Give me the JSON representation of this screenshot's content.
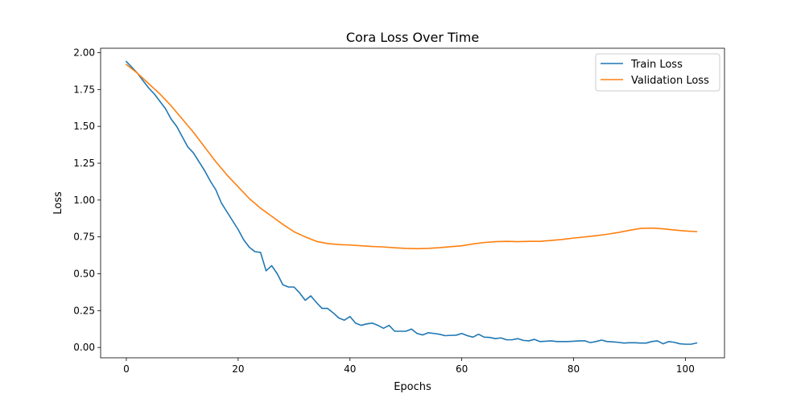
{
  "chart_data": {
    "type": "line",
    "title": "Cora Loss Over Time",
    "xlabel": "Epochs",
    "ylabel": "Loss",
    "xlim": [
      -4.6,
      107
    ],
    "ylim": [
      -0.07,
      2.03
    ],
    "xticks": [
      0,
      20,
      40,
      60,
      80,
      100
    ],
    "yticks": [
      0.0,
      0.25,
      0.5,
      0.75,
      1.0,
      1.25,
      1.5,
      1.75,
      2.0
    ],
    "ytick_labels": [
      "0.00",
      "0.25",
      "0.50",
      "0.75",
      "1.00",
      "1.25",
      "1.50",
      "1.75",
      "2.00"
    ],
    "grid": false,
    "legend_position": "top-right",
    "series": [
      {
        "name": "Train Loss",
        "color": "#1f77b4",
        "points": [
          [
            0,
            1.94
          ],
          [
            1,
            1.9
          ],
          [
            2,
            1.86
          ],
          [
            3,
            1.81
          ],
          [
            4,
            1.76
          ],
          [
            5,
            1.72
          ],
          [
            6,
            1.67
          ],
          [
            7,
            1.62
          ],
          [
            8,
            1.55
          ],
          [
            9,
            1.5
          ],
          [
            10,
            1.43
          ],
          [
            11,
            1.36
          ],
          [
            12,
            1.32
          ],
          [
            13,
            1.26
          ],
          [
            14,
            1.2
          ],
          [
            15,
            1.13
          ],
          [
            16,
            1.07
          ],
          [
            17,
            0.98
          ],
          [
            18,
            0.92
          ],
          [
            19,
            0.86
          ],
          [
            20,
            0.8
          ],
          [
            21,
            0.73
          ],
          [
            22,
            0.68
          ],
          [
            23,
            0.65
          ],
          [
            24,
            0.645
          ],
          [
            25,
            0.52
          ],
          [
            26,
            0.555
          ],
          [
            27,
            0.5
          ],
          [
            28,
            0.425
          ],
          [
            29,
            0.41
          ],
          [
            30,
            0.41
          ],
          [
            31,
            0.37
          ],
          [
            32,
            0.32
          ],
          [
            33,
            0.35
          ],
          [
            34,
            0.305
          ],
          [
            35,
            0.265
          ],
          [
            36,
            0.265
          ],
          [
            37,
            0.235
          ],
          [
            38,
            0.2
          ],
          [
            39,
            0.185
          ],
          [
            40,
            0.21
          ],
          [
            41,
            0.165
          ],
          [
            42,
            0.15
          ],
          [
            43,
            0.16
          ],
          [
            44,
            0.165
          ],
          [
            45,
            0.15
          ],
          [
            46,
            0.13
          ],
          [
            47,
            0.15
          ],
          [
            48,
            0.11
          ],
          [
            49,
            0.11
          ],
          [
            50,
            0.11
          ],
          [
            51,
            0.125
          ],
          [
            52,
            0.095
          ],
          [
            53,
            0.085
          ],
          [
            54,
            0.1
          ],
          [
            55,
            0.095
          ],
          [
            56,
            0.09
          ],
          [
            57,
            0.08
          ],
          [
            58,
            0.082
          ],
          [
            59,
            0.083
          ],
          [
            60,
            0.095
          ],
          [
            61,
            0.08
          ],
          [
            62,
            0.07
          ],
          [
            63,
            0.09
          ],
          [
            64,
            0.07
          ],
          [
            65,
            0.068
          ],
          [
            66,
            0.06
          ],
          [
            67,
            0.065
          ],
          [
            68,
            0.052
          ],
          [
            69,
            0.052
          ],
          [
            70,
            0.06
          ],
          [
            71,
            0.048
          ],
          [
            72,
            0.045
          ],
          [
            73,
            0.055
          ],
          [
            74,
            0.04
          ],
          [
            75,
            0.042
          ],
          [
            76,
            0.045
          ],
          [
            77,
            0.04
          ],
          [
            78,
            0.04
          ],
          [
            79,
            0.04
          ],
          [
            80,
            0.042
          ],
          [
            81,
            0.045
          ],
          [
            82,
            0.045
          ],
          [
            83,
            0.033
          ],
          [
            84,
            0.04
          ],
          [
            85,
            0.05
          ],
          [
            86,
            0.04
          ],
          [
            87,
            0.038
          ],
          [
            88,
            0.035
          ],
          [
            89,
            0.03
          ],
          [
            90,
            0.032
          ],
          [
            91,
            0.032
          ],
          [
            92,
            0.03
          ],
          [
            93,
            0.03
          ],
          [
            94,
            0.04
          ],
          [
            95,
            0.045
          ],
          [
            96,
            0.025
          ],
          [
            97,
            0.04
          ],
          [
            98,
            0.035
          ],
          [
            99,
            0.025
          ],
          [
            100,
            0.022
          ],
          [
            101,
            0.022
          ],
          [
            102,
            0.03
          ]
        ]
      },
      {
        "name": "Validation Loss",
        "color": "#ff7f0e",
        "points": [
          [
            0,
            1.92
          ],
          [
            2,
            1.86
          ],
          [
            4,
            1.79
          ],
          [
            6,
            1.72
          ],
          [
            8,
            1.64
          ],
          [
            10,
            1.55
          ],
          [
            12,
            1.46
          ],
          [
            14,
            1.36
          ],
          [
            16,
            1.26
          ],
          [
            18,
            1.17
          ],
          [
            20,
            1.09
          ],
          [
            22,
            1.01
          ],
          [
            24,
            0.945
          ],
          [
            26,
            0.89
          ],
          [
            28,
            0.835
          ],
          [
            30,
            0.785
          ],
          [
            32,
            0.75
          ],
          [
            34,
            0.72
          ],
          [
            36,
            0.705
          ],
          [
            38,
            0.698
          ],
          [
            40,
            0.695
          ],
          [
            42,
            0.69
          ],
          [
            44,
            0.685
          ],
          [
            46,
            0.682
          ],
          [
            48,
            0.676
          ],
          [
            50,
            0.672
          ],
          [
            52,
            0.67
          ],
          [
            54,
            0.672
          ],
          [
            56,
            0.677
          ],
          [
            58,
            0.684
          ],
          [
            60,
            0.69
          ],
          [
            62,
            0.702
          ],
          [
            64,
            0.712
          ],
          [
            66,
            0.718
          ],
          [
            68,
            0.72
          ],
          [
            70,
            0.718
          ],
          [
            72,
            0.72
          ],
          [
            74,
            0.72
          ],
          [
            76,
            0.726
          ],
          [
            78,
            0.733
          ],
          [
            80,
            0.742
          ],
          [
            82,
            0.75
          ],
          [
            84,
            0.758
          ],
          [
            86,
            0.768
          ],
          [
            88,
            0.78
          ],
          [
            90,
            0.795
          ],
          [
            92,
            0.808
          ],
          [
            94,
            0.81
          ],
          [
            96,
            0.805
          ],
          [
            98,
            0.797
          ],
          [
            100,
            0.79
          ],
          [
            102,
            0.786
          ]
        ]
      }
    ]
  }
}
